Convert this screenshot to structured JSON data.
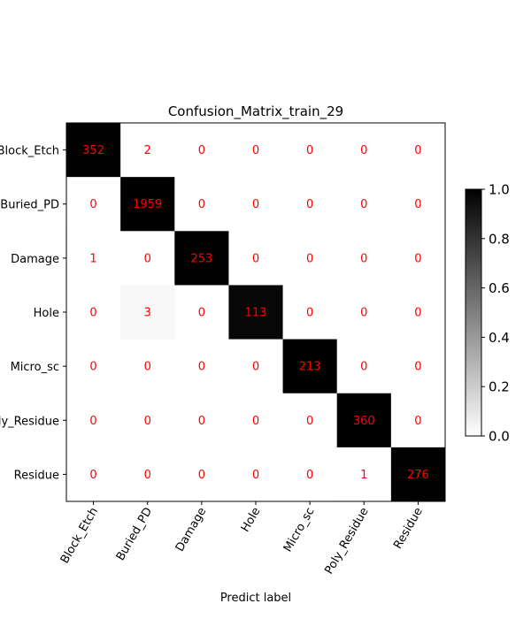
{
  "chart_data": {
    "type": "heatmap",
    "title": "Confusion_Matrix_train_29",
    "xlabel": "Predict label",
    "ylabel": "",
    "labels": [
      "Block_Etch",
      "Buried_PD",
      "Damage",
      "Hole",
      "Micro_sc",
      "Poly_Residue",
      "Residue"
    ],
    "matrix": [
      [
        352,
        2,
        0,
        0,
        0,
        0,
        0
      ],
      [
        0,
        1959,
        0,
        0,
        0,
        0,
        0
      ],
      [
        1,
        0,
        253,
        0,
        0,
        0,
        0
      ],
      [
        0,
        3,
        0,
        113,
        0,
        0,
        0
      ],
      [
        0,
        0,
        0,
        0,
        213,
        0,
        0
      ],
      [
        0,
        0,
        0,
        0,
        0,
        360,
        0
      ],
      [
        0,
        0,
        0,
        0,
        0,
        1,
        276
      ]
    ],
    "normalization": "row",
    "colormap": "white-to-black",
    "annotation_color": "#ff0000",
    "colorbar": {
      "range": [
        0.0,
        1.0
      ],
      "ticks": [
        "0.0",
        "0.2",
        "0.4",
        "0.6",
        "0.8",
        "1.0"
      ]
    }
  }
}
